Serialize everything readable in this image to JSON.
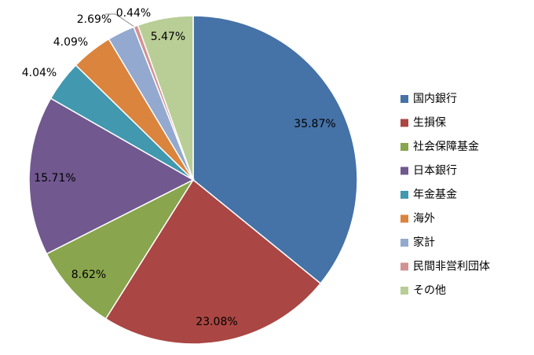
{
  "chart_data": {
    "type": "pie",
    "categories": [
      "国内銀行",
      "生損保",
      "社会保障基金",
      "日本銀行",
      "年金基金",
      "海外",
      "家計",
      "民間非営利団体",
      "その他"
    ],
    "values": [
      35.87,
      23.08,
      8.62,
      15.71,
      4.04,
      4.09,
      2.69,
      0.44,
      5.47
    ],
    "value_labels": [
      "35.87%",
      "23.08%",
      "8.62%",
      "15.71%",
      "4.04%",
      "4.09%",
      "2.69%",
      "0.44%",
      "5.47%"
    ],
    "colors": [
      "#4572A7",
      "#AA4643",
      "#89A54E",
      "#71588F",
      "#4198AF",
      "#DB843D",
      "#93A9CF",
      "#D19392",
      "#B9CD96"
    ],
    "legend": "right"
  }
}
